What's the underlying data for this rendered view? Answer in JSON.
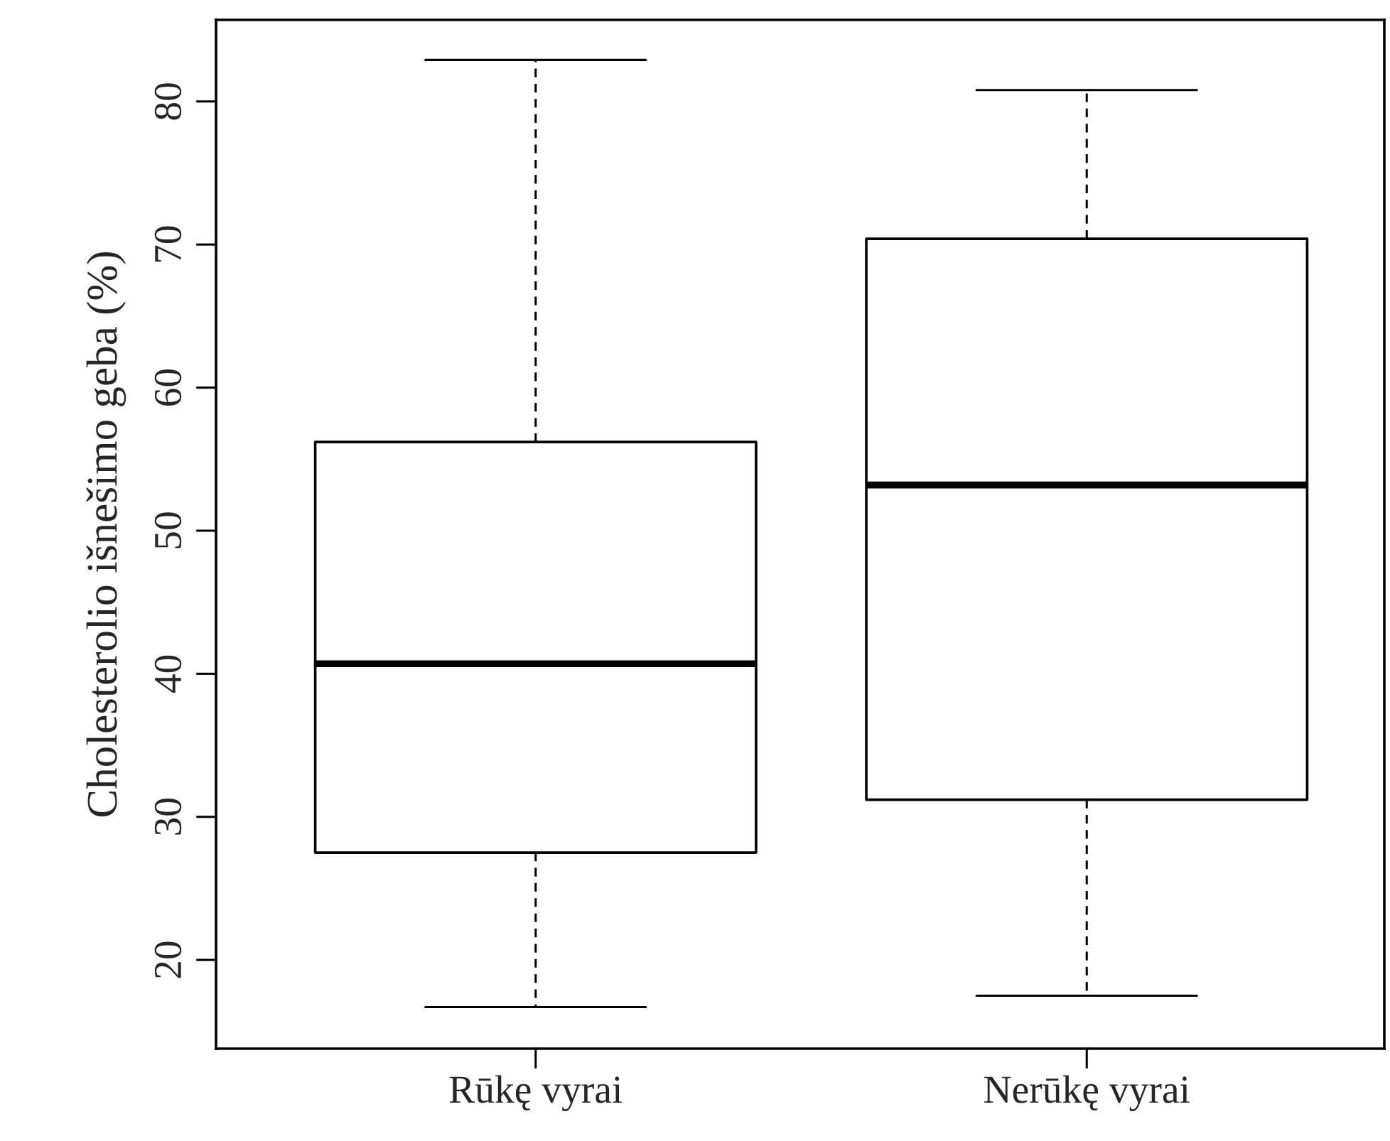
{
  "chart_data": {
    "type": "box",
    "ylabel": "Cholesterolio išnešimo geba (%)",
    "categories": [
      "Rūkę vyrai",
      "Nerūkę vyrai"
    ],
    "boxes": [
      {
        "low": 16.7,
        "q1": 27.5,
        "median": 40.7,
        "q3": 56.2,
        "high": 82.9
      },
      {
        "low": 17.5,
        "q1": 31.2,
        "median": 53.2,
        "q3": 70.4,
        "high": 80.8
      }
    ],
    "ylim": [
      13.8,
      85.7
    ],
    "yticks": [
      20,
      30,
      40,
      50,
      60,
      70,
      80
    ],
    "grid": false,
    "legend": false
  }
}
